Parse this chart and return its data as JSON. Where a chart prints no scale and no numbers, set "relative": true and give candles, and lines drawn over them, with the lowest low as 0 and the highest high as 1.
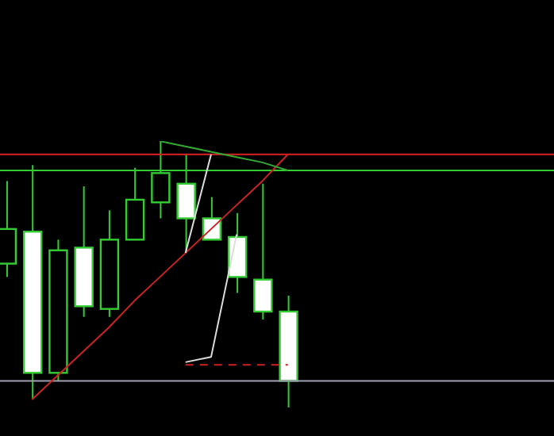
{
  "chart_data": {
    "type": "candlestick",
    "relative": true,
    "tick_labels": false,
    "grid": false,
    "legend": false,
    "color": "#33cc33",
    "categories": [
      null,
      null,
      null,
      null,
      null,
      null,
      null,
      null,
      null,
      null,
      null,
      null
    ],
    "ohlc": [
      [
        0.54,
        0.85,
        0.49,
        0.67
      ],
      [
        0.66,
        0.91,
        0.03,
        0.13
      ],
      [
        0.13,
        0.63,
        0.1,
        0.59
      ],
      [
        0.6,
        0.83,
        0.34,
        0.38
      ],
      [
        0.37,
        0.74,
        0.34,
        0.63
      ],
      [
        0.63,
        0.9,
        0.63,
        0.78
      ],
      [
        0.77,
        1.0,
        0.71,
        0.88
      ],
      [
        0.84,
        0.95,
        0.58,
        0.71
      ],
      [
        0.71,
        0.79,
        0.63,
        0.63
      ],
      [
        0.64,
        0.73,
        0.43,
        0.49
      ],
      [
        0.48,
        0.84,
        0.33,
        0.36
      ],
      [
        0.36,
        0.42,
        0.0,
        0.1
      ]
    ],
    "series": [
      {
        "type": "line",
        "color": "#cc2222",
        "values": [
          null,
          0.03,
          0.12,
          0.21,
          0.3,
          0.4,
          0.49,
          0.58,
          0.67,
          0.76,
          0.85,
          0.95
        ]
      },
      {
        "type": "line",
        "color": "#33aa33",
        "values": [
          null,
          null,
          null,
          null,
          null,
          null,
          1.0,
          0.98,
          0.96,
          0.94,
          0.92,
          0.89
        ]
      },
      {
        "type": "line",
        "color": "#dddddd",
        "values": [
          null,
          null,
          null,
          null,
          null,
          null,
          null,
          0.58,
          0.95,
          null,
          null,
          null
        ]
      },
      {
        "type": "line",
        "color": "#dddddd",
        "values": [
          null,
          null,
          null,
          null,
          null,
          null,
          null,
          0.17,
          0.19,
          0.65,
          null,
          null
        ]
      },
      {
        "type": "line",
        "color": "#cc2222",
        "line_style": "dashed",
        "values": [
          null,
          null,
          null,
          null,
          null,
          null,
          null,
          0.16,
          0.16,
          0.16,
          0.16,
          0.16
        ]
      }
    ],
    "ref_lines": [
      {
        "axis": "y",
        "value": 0.95,
        "color": "#dd2222"
      },
      {
        "axis": "y",
        "value": 0.89,
        "color": "#33cc33"
      },
      {
        "axis": "y",
        "value": 0.1,
        "color": "#a0a0b0"
      }
    ]
  }
}
